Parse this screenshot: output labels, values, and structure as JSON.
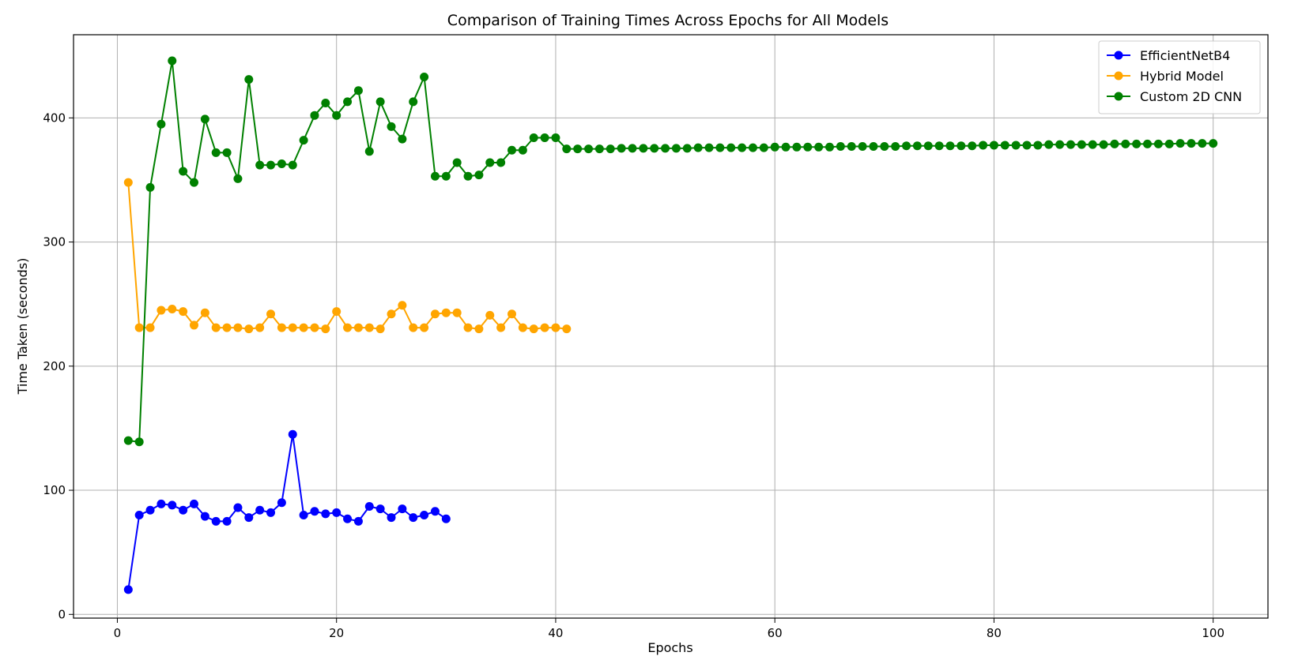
{
  "chart_data": {
    "type": "line",
    "title": "Comparison of Training Times Across Epochs for All Models",
    "xlabel": "Epochs",
    "ylabel": "Time Taken (seconds)",
    "xlim": [
      -4,
      105
    ],
    "ylim": [
      -3,
      467
    ],
    "xticks": [
      0,
      20,
      40,
      60,
      80,
      100
    ],
    "yticks": [
      0,
      100,
      200,
      300,
      400
    ],
    "grid": true,
    "legend_position": "top-right",
    "series": [
      {
        "name": "EfficientNetB4",
        "color": "#0000ff",
        "x": [
          1,
          2,
          3,
          4,
          5,
          6,
          7,
          8,
          9,
          10,
          11,
          12,
          13,
          14,
          15,
          16,
          17,
          18,
          19,
          20,
          21,
          22,
          23,
          24,
          25,
          26,
          27,
          28,
          29,
          30
        ],
        "values": [
          20,
          80,
          84,
          89,
          88,
          84,
          89,
          79,
          75,
          75,
          86,
          78,
          84,
          82,
          90,
          145,
          80,
          83,
          81,
          82,
          77,
          75,
          87,
          85,
          78,
          85,
          78,
          80,
          83,
          77
        ]
      },
      {
        "name": "Hybrid Model",
        "color": "#ffa500",
        "x": [
          1,
          2,
          3,
          4,
          5,
          6,
          7,
          8,
          9,
          10,
          11,
          12,
          13,
          14,
          15,
          16,
          17,
          18,
          19,
          20,
          21,
          22,
          23,
          24,
          25,
          26,
          27,
          28,
          29,
          30,
          31,
          32,
          33,
          34,
          35,
          36,
          37,
          38,
          39,
          40,
          41
        ],
        "values": [
          348,
          231,
          231,
          245,
          246,
          244,
          233,
          243,
          231,
          231,
          231,
          230,
          231,
          242,
          231,
          231,
          231,
          231,
          230,
          244,
          231,
          231,
          231,
          230,
          242,
          249,
          231,
          231,
          242,
          243,
          243,
          231,
          230,
          241,
          231,
          242,
          231,
          230,
          231,
          231,
          230
        ]
      },
      {
        "name": "Custom 2D CNN",
        "color": "#008000",
        "x": [
          1,
          2,
          3,
          4,
          5,
          6,
          7,
          8,
          9,
          10,
          11,
          12,
          13,
          14,
          15,
          16,
          17,
          18,
          19,
          20,
          21,
          22,
          23,
          24,
          25,
          26,
          27,
          28,
          29,
          30,
          31,
          32,
          33,
          34,
          35,
          36,
          37,
          38,
          39,
          40,
          41,
          42,
          43,
          44,
          45,
          46,
          47,
          48,
          49,
          50,
          51,
          52,
          53,
          54,
          55,
          56,
          57,
          58,
          59,
          60,
          61,
          62,
          63,
          64,
          65,
          66,
          67,
          68,
          69,
          70,
          71,
          72,
          73,
          74,
          75,
          76,
          77,
          78,
          79,
          80,
          81,
          82,
          83,
          84,
          85,
          86,
          87,
          88,
          89,
          90,
          91,
          92,
          93,
          94,
          95,
          96,
          97,
          98,
          99,
          100
        ],
        "values": [
          140,
          139,
          344,
          395,
          446,
          357,
          348,
          399,
          372,
          372,
          351,
          431,
          362,
          362,
          363,
          362,
          382,
          402,
          412,
          402,
          413,
          422,
          373,
          413,
          393,
          383,
          413,
          433,
          353,
          353,
          364,
          353,
          354,
          364,
          364,
          374,
          374,
          384,
          384,
          384,
          375,
          375,
          375,
          375,
          375,
          375.5,
          375.5,
          375.5,
          375.5,
          375.5,
          375.5,
          375.5,
          376,
          376,
          376,
          376,
          376,
          376,
          376,
          376.5,
          376.5,
          376.5,
          376.5,
          376.5,
          376.5,
          377,
          377,
          377,
          377,
          377,
          377,
          377.5,
          377.5,
          377.5,
          377.5,
          377.5,
          377.5,
          377.5,
          378,
          378,
          378,
          378,
          378,
          378,
          378.5,
          378.5,
          378.5,
          378.5,
          378.5,
          378.5,
          379,
          379,
          379,
          379,
          379,
          379,
          379.5,
          379.5,
          379.5,
          379.5
        ]
      }
    ]
  }
}
